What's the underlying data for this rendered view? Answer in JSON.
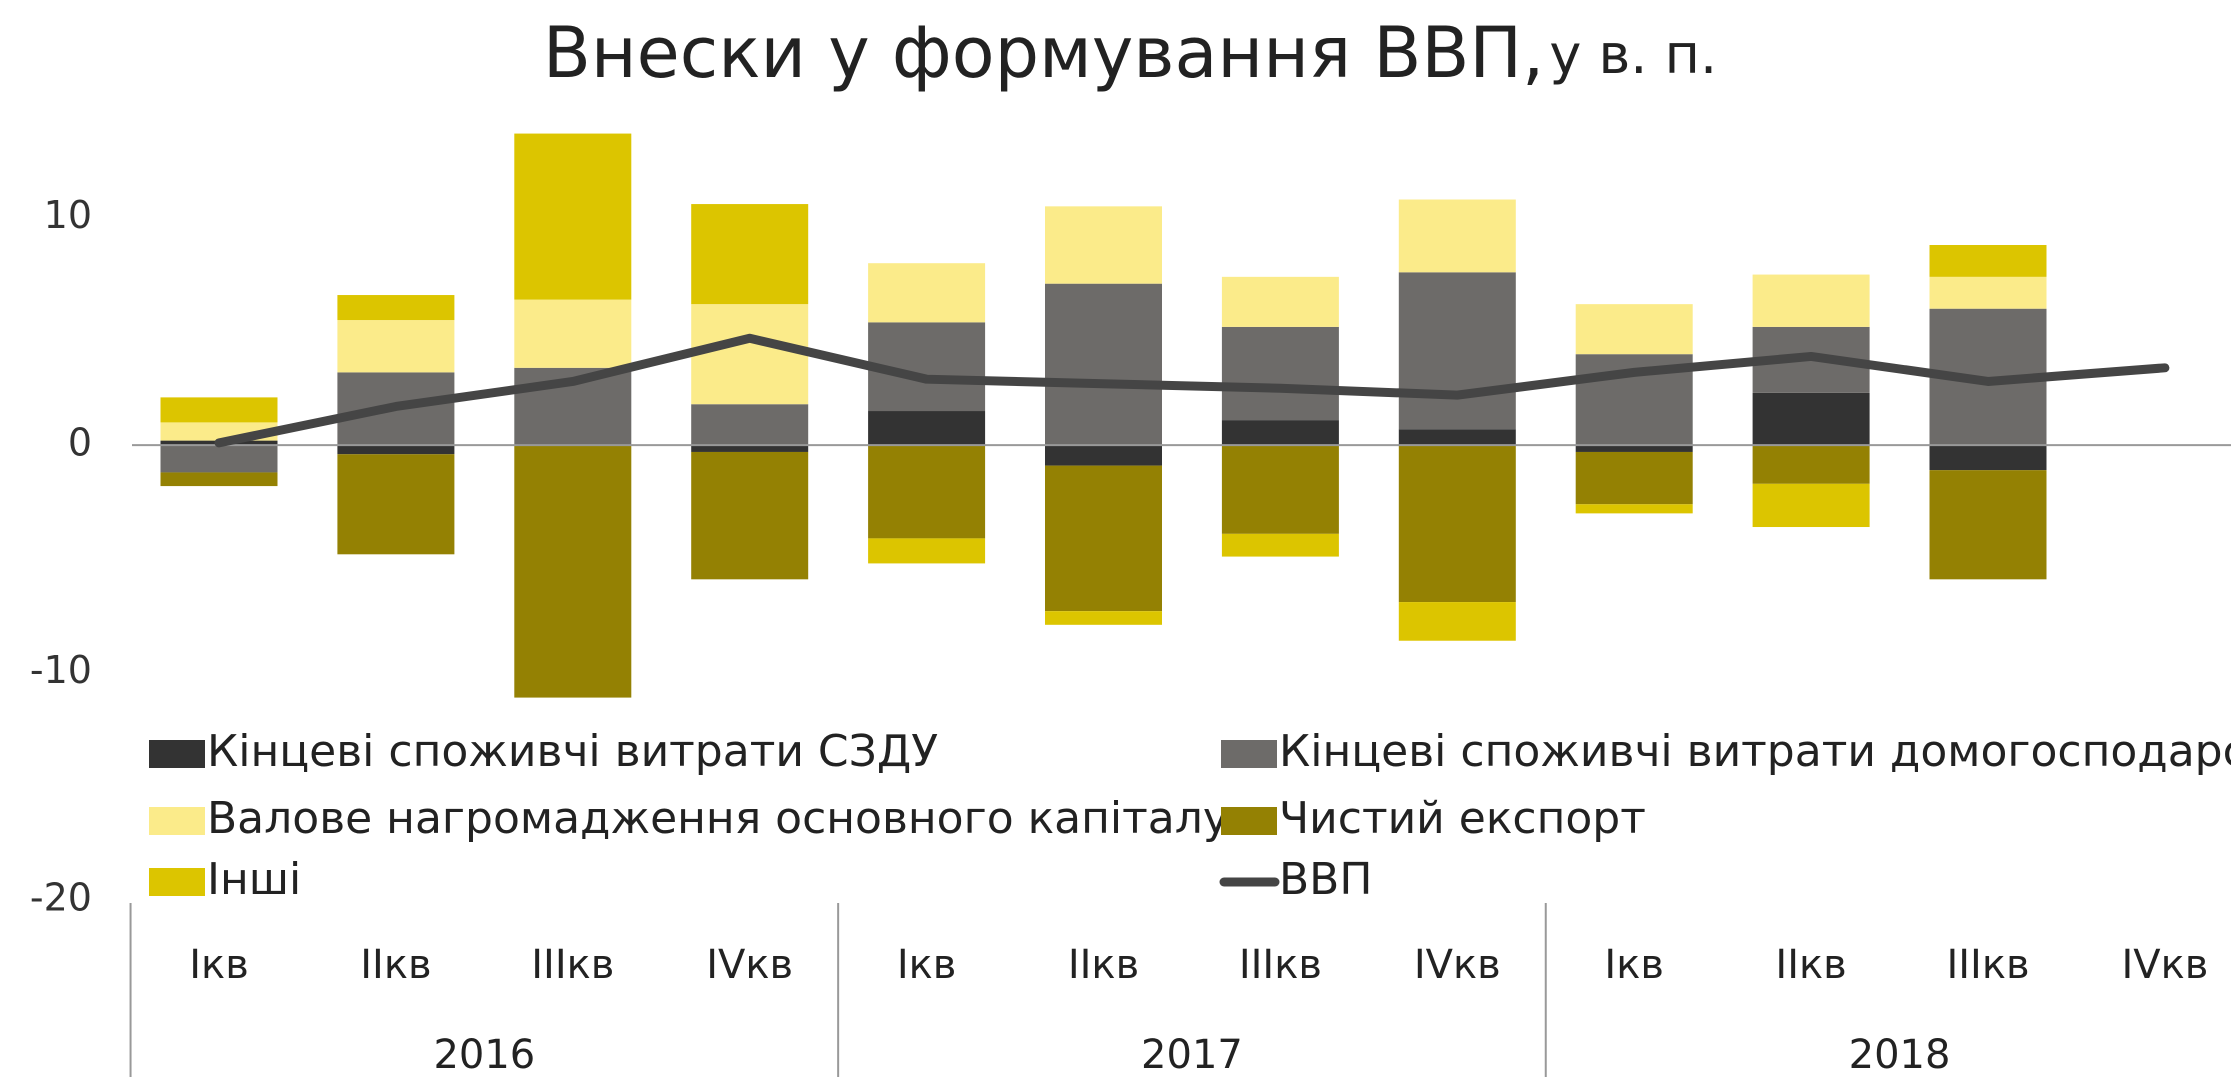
{
  "chart_data": {
    "type": "bar",
    "stacked": true,
    "title": "Внески у формування ВВП,",
    "unit": "у в. п.",
    "categories": [
      "Ікв",
      "ІІкв",
      "ІІІкв",
      "ІVкв",
      "Ікв",
      "ІІкв",
      "ІІІкв",
      "ІVкв",
      "Ікв",
      "ІІкв",
      "ІІІкв",
      "ІVкв"
    ],
    "groups": [
      "2016",
      "2017",
      "2018"
    ],
    "ylim": [
      -20,
      15
    ],
    "yticks": [
      -20,
      -10,
      0,
      10
    ],
    "series": [
      {
        "name": "Кінцеві споживчі витрати СЗДУ",
        "color": "#333333",
        "values": [
          0.2,
          -0.4,
          0,
          -0.3,
          1.5,
          -0.9,
          1.1,
          0.7,
          -0.3,
          2.3,
          -1.1,
          null
        ]
      },
      {
        "name": "Кінцеві споживчі витрати домогосподарств",
        "color": "#6d6b69",
        "values": [
          -1.2,
          3.2,
          3.4,
          1.8,
          3.9,
          7.1,
          4.1,
          6.9,
          4.0,
          2.9,
          6.0,
          null
        ]
      },
      {
        "name": "Валове нагромадження основного капіталу",
        "color": "#fbeb8a",
        "values": [
          0.8,
          2.3,
          3.0,
          4.4,
          2.6,
          3.4,
          2.2,
          3.2,
          2.2,
          2.3,
          1.4,
          null
        ]
      },
      {
        "name": "Чистий експорт",
        "color": "#948103",
        "values": [
          -0.6,
          -4.4,
          -11.1,
          -5.6,
          -4.1,
          -6.4,
          -3.9,
          -6.9,
          -2.3,
          -1.7,
          -4.8,
          null
        ]
      },
      {
        "name": "Інші",
        "color": "#dcc500",
        "values": [
          1.1,
          1.1,
          7.3,
          4.4,
          -1.1,
          -0.6,
          -1.0,
          -1.7,
          -0.4,
          -1.9,
          1.4,
          null
        ]
      },
      {
        "name": "ВВП",
        "type": "line",
        "color": "#454545",
        "values": [
          0.1,
          1.7,
          2.8,
          4.7,
          2.9,
          2.7,
          2.5,
          2.2,
          3.2,
          3.9,
          2.8,
          3.4
        ]
      }
    ]
  }
}
